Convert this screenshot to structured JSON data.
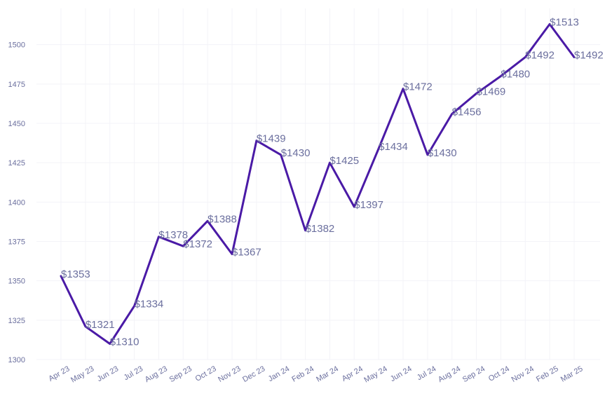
{
  "chart_data": {
    "type": "line",
    "title": "",
    "xlabel": "",
    "ylabel": "",
    "categories": [
      "Apr 23",
      "May 23",
      "Jun 23",
      "Jul 23",
      "Aug 23",
      "Sep 23",
      "Oct 23",
      "Nov 23",
      "Dec 23",
      "Jan 24",
      "Feb 24",
      "Mar 24",
      "Apr 24",
      "May 24",
      "Jun 24",
      "Jul 24",
      "Aug 24",
      "Sep 24",
      "Oct 24",
      "Nov 24",
      "Feb 25",
      "Mar 25"
    ],
    "values": [
      1353,
      1321,
      1310,
      1334,
      1378,
      1372,
      1388,
      1367,
      1439,
      1430,
      1382,
      1425,
      1397,
      1434,
      1472,
      1430,
      1456,
      1469,
      1480,
      1492,
      1513,
      1492
    ],
    "data_labels": [
      "$1353",
      "$1321",
      "$1310",
      "$1334",
      "$1378",
      "$1372",
      "$1388",
      "$1367",
      "$1439",
      "$1430",
      "$1382",
      "$1425",
      "$1397",
      "$1434",
      "$1472",
      "$1430",
      "$1456",
      "$1469",
      "$1480",
      "$1492",
      "$1513",
      "$1492"
    ],
    "y_ticks": [
      1300,
      1325,
      1350,
      1375,
      1400,
      1425,
      1450,
      1475,
      1500
    ],
    "ylim": [
      1300,
      1523
    ],
    "grid": true,
    "legend": "none",
    "colors": {
      "line": "#4a1aa6",
      "grid": "#f3f3f8",
      "text": "#6b6f9e"
    }
  }
}
